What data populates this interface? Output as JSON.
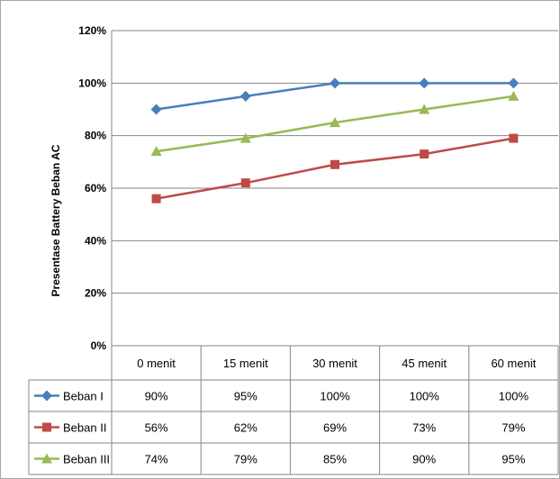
{
  "chart_data": {
    "type": "line",
    "title": "",
    "xlabel": "",
    "ylabel": "Presentase Battery Beban AC",
    "ylim": [
      0,
      120
    ],
    "y_ticks": [
      "0%",
      "20%",
      "40%",
      "60%",
      "80%",
      "100%",
      "120%"
    ],
    "grid": true,
    "legend": "table-below",
    "categories": [
      "0 menit",
      "15 menit",
      "30 menit",
      "45 menit",
      "60 menit"
    ],
    "series": [
      {
        "name": "Beban I",
        "values": [
          90,
          95,
          100,
          100,
          100
        ],
        "labels": [
          "90%",
          "95%",
          "100%",
          "100%",
          "100%"
        ],
        "color": "#4a7ebb",
        "marker": "diamond"
      },
      {
        "name": "Beban II",
        "values": [
          56,
          62,
          69,
          73,
          79
        ],
        "labels": [
          "56%",
          "62%",
          "69%",
          "73%",
          "79%"
        ],
        "color": "#be4b48",
        "marker": "square"
      },
      {
        "name": "Beban III",
        "values": [
          74,
          79,
          85,
          90,
          95
        ],
        "labels": [
          "74%",
          "79%",
          "85%",
          "90%",
          "95%"
        ],
        "color": "#98b954",
        "marker": "triangle"
      }
    ]
  }
}
